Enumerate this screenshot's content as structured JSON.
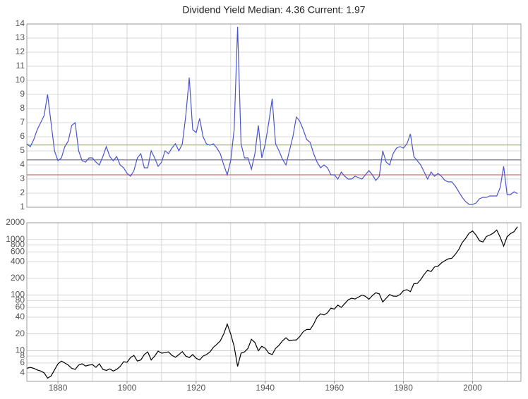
{
  "chart_data": [
    {
      "type": "line",
      "title": "Dividend Yield     Median: 4.36  Current: 1.97",
      "xlim": [
        1871,
        2014
      ],
      "xgrid": [
        1880,
        1890,
        1900,
        1910,
        1920,
        1930,
        1940,
        1950,
        1960,
        1970,
        1980,
        1990,
        2000,
        2010
      ],
      "ylim": [
        1,
        14
      ],
      "yticks": [
        1,
        2,
        3,
        4,
        5,
        6,
        7,
        8,
        9,
        10,
        11,
        12,
        13,
        14
      ],
      "grid": true,
      "reference_lines": [
        {
          "value": 5.42,
          "color": "#7cc47c"
        },
        {
          "value": 4.36,
          "color": "#666688"
        },
        {
          "value": 3.3,
          "color": "#d07070"
        }
      ],
      "x": [
        1871,
        1872,
        1873,
        1874,
        1875,
        1876,
        1877,
        1878,
        1879,
        1880,
        1881,
        1882,
        1883,
        1884,
        1885,
        1886,
        1887,
        1888,
        1889,
        1890,
        1891,
        1892,
        1893,
        1894,
        1895,
        1896,
        1897,
        1898,
        1899,
        1900,
        1901,
        1902,
        1903,
        1904,
        1905,
        1906,
        1907,
        1908,
        1909,
        1910,
        1911,
        1912,
        1913,
        1914,
        1915,
        1916,
        1917,
        1918,
        1919,
        1920,
        1921,
        1922,
        1923,
        1924,
        1925,
        1926,
        1927,
        1928,
        1929,
        1930,
        1931,
        1932,
        1933,
        1934,
        1935,
        1936,
        1937,
        1938,
        1939,
        1940,
        1941,
        1942,
        1943,
        1944,
        1945,
        1946,
        1947,
        1948,
        1949,
        1950,
        1951,
        1952,
        1953,
        1954,
        1955,
        1956,
        1957,
        1958,
        1959,
        1960,
        1961,
        1962,
        1963,
        1964,
        1965,
        1966,
        1967,
        1968,
        1969,
        1970,
        1971,
        1972,
        1973,
        1974,
        1975,
        1976,
        1977,
        1978,
        1979,
        1980,
        1981,
        1982,
        1983,
        1984,
        1985,
        1986,
        1987,
        1988,
        1989,
        1990,
        1991,
        1992,
        1993,
        1994,
        1995,
        1996,
        1997,
        1998,
        1999,
        2000,
        2001,
        2002,
        2003,
        2004,
        2005,
        2006,
        2007,
        2008,
        2009,
        2010,
        2011,
        2012,
        2013
      ],
      "series": [
        {
          "color": "#4a55cc",
          "values": [
            5.5,
            5.3,
            5.8,
            6.5,
            7.0,
            7.5,
            9.0,
            7.0,
            5.0,
            4.3,
            4.5,
            5.3,
            5.7,
            6.8,
            7.0,
            5.0,
            4.3,
            4.2,
            4.5,
            4.5,
            4.2,
            4.0,
            4.6,
            5.3,
            4.6,
            4.3,
            4.6,
            4.0,
            3.8,
            3.4,
            3.2,
            3.6,
            4.5,
            4.8,
            3.8,
            3.8,
            5.0,
            4.5,
            3.9,
            4.2,
            5.0,
            4.8,
            5.2,
            5.5,
            5.0,
            5.5,
            7.5,
            10.2,
            6.5,
            6.3,
            7.3,
            6.0,
            5.5,
            5.4,
            5.5,
            5.2,
            4.8,
            4.0,
            3.3,
            4.3,
            6.5,
            13.8,
            5.5,
            4.5,
            4.5,
            3.7,
            4.8,
            6.8,
            4.5,
            5.5,
            7.0,
            8.7,
            5.5,
            5.0,
            4.4,
            4.0,
            5.0,
            6.0,
            7.4,
            7.1,
            6.5,
            5.8,
            5.6,
            4.8,
            4.2,
            3.8,
            4.0,
            3.8,
            3.3,
            3.3,
            3.0,
            3.5,
            3.2,
            3.0,
            3.0,
            3.2,
            3.1,
            3.0,
            3.3,
            3.6,
            3.3,
            2.9,
            3.2,
            5.0,
            4.2,
            4.0,
            4.8,
            5.2,
            5.3,
            5.2,
            5.5,
            6.2,
            4.6,
            4.3,
            4.0,
            3.5,
            3.0,
            3.5,
            3.2,
            3.4,
            3.2,
            2.9,
            2.8,
            2.8,
            2.5,
            2.1,
            1.7,
            1.4,
            1.2,
            1.2,
            1.3,
            1.6,
            1.7,
            1.7,
            1.8,
            1.8,
            1.8,
            2.4,
            3.9,
            1.9,
            1.9,
            2.1,
            1.97
          ]
        }
      ]
    },
    {
      "type": "line",
      "log": true,
      "xlim": [
        1871,
        2014
      ],
      "xticks": [
        1880,
        1900,
        1920,
        1940,
        1960,
        1980,
        2000
      ],
      "xgrid": [
        1880,
        1890,
        1900,
        1910,
        1920,
        1930,
        1940,
        1950,
        1960,
        1970,
        1980,
        1990,
        2000,
        2010
      ],
      "ylim": [
        2.8,
        2000
      ],
      "yticks": [
        4,
        6,
        8,
        10,
        20,
        40,
        60,
        80,
        100,
        200,
        400,
        600,
        800,
        1000,
        2000
      ],
      "grid": true,
      "x": [
        1871,
        1872,
        1873,
        1874,
        1875,
        1876,
        1877,
        1878,
        1879,
        1880,
        1881,
        1882,
        1883,
        1884,
        1885,
        1886,
        1887,
        1888,
        1889,
        1890,
        1891,
        1892,
        1893,
        1894,
        1895,
        1896,
        1897,
        1898,
        1899,
        1900,
        1901,
        1902,
        1903,
        1904,
        1905,
        1906,
        1907,
        1908,
        1909,
        1910,
        1911,
        1912,
        1913,
        1914,
        1915,
        1916,
        1917,
        1918,
        1919,
        1920,
        1921,
        1922,
        1923,
        1924,
        1925,
        1926,
        1927,
        1928,
        1929,
        1930,
        1931,
        1932,
        1933,
        1934,
        1935,
        1936,
        1937,
        1938,
        1939,
        1940,
        1941,
        1942,
        1943,
        1944,
        1945,
        1946,
        1947,
        1948,
        1949,
        1950,
        1951,
        1952,
        1953,
        1954,
        1955,
        1956,
        1957,
        1958,
        1959,
        1960,
        1961,
        1962,
        1963,
        1964,
        1965,
        1966,
        1967,
        1968,
        1969,
        1970,
        1971,
        1972,
        1973,
        1974,
        1975,
        1976,
        1977,
        1978,
        1979,
        1980,
        1981,
        1982,
        1983,
        1984,
        1985,
        1986,
        1987,
        1988,
        1989,
        1990,
        1991,
        1992,
        1993,
        1994,
        1995,
        1996,
        1997,
        1998,
        1999,
        2000,
        2001,
        2002,
        2003,
        2004,
        2005,
        2006,
        2007,
        2008,
        2009,
        2010,
        2011,
        2012,
        2013
      ],
      "series": [
        {
          "color": "#000000",
          "values": [
            4.8,
            5.0,
            4.8,
            4.5,
            4.3,
            4.0,
            3.2,
            3.5,
            4.5,
            5.8,
            6.5,
            6.0,
            5.5,
            4.8,
            4.6,
            5.5,
            5.8,
            5.3,
            5.5,
            5.6,
            5.0,
            5.8,
            4.6,
            4.4,
            4.7,
            4.3,
            4.6,
            5.2,
            6.3,
            6.2,
            7.5,
            8.2,
            6.5,
            6.8,
            8.5,
            9.5,
            6.8,
            8.0,
            9.8,
            9.0,
            9.2,
            9.5,
            8.2,
            7.6,
            8.5,
            9.6,
            8.0,
            7.5,
            8.5,
            7.3,
            6.8,
            8.0,
            8.5,
            9.5,
            11.5,
            13,
            15,
            20,
            30,
            20,
            12,
            5.2,
            9,
            9.5,
            11,
            16,
            14,
            10,
            12,
            11,
            9,
            8.5,
            11,
            12.5,
            15,
            17,
            15,
            15.5,
            15.5,
            18,
            22,
            24,
            24,
            30,
            40,
            46,
            44,
            48,
            58,
            56,
            66,
            60,
            70,
            82,
            88,
            85,
            92,
            100,
            95,
            84,
            98,
            110,
            105,
            75,
            88,
            102,
            96,
            95,
            102,
            120,
            125,
            115,
            160,
            162,
            190,
            235,
            280,
            265,
            320,
            330,
            380,
            415,
            450,
            460,
            540,
            660,
            880,
            1050,
            1300,
            1420,
            1200,
            950,
            900,
            1130,
            1200,
            1300,
            1480,
            1100,
            760,
            1120,
            1280,
            1380,
            1700
          ]
        }
      ]
    }
  ]
}
